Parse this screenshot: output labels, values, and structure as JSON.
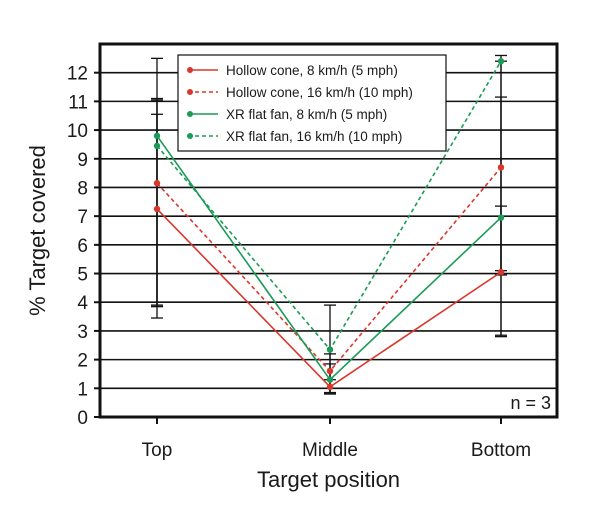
{
  "chart_data": {
    "type": "line",
    "xlabel": "Target position",
    "ylabel": "% Target covered",
    "categories": [
      "Top",
      "Middle",
      "Bottom"
    ],
    "ylim": [
      0,
      13
    ],
    "yticks": [
      0,
      1,
      2,
      3,
      4,
      5,
      6,
      7,
      8,
      9,
      10,
      11,
      12
    ],
    "grid": "horizontal",
    "legend_position": "top-center",
    "annotation": "n = 3",
    "series": [
      {
        "name": "Hollow cone, 8 km/h (5 mph)",
        "color": "#d9372b",
        "line_style": "solid",
        "values": [
          7.25,
          1.05,
          5.05
        ],
        "error_low": [
          3.45,
          0.8,
          2.85
        ],
        "error_high": [
          11.05,
          1.3,
          7.35
        ]
      },
      {
        "name": "Hollow cone, 16 km/h (10 mph)",
        "color": "#d9372b",
        "line_style": "dashed",
        "values": [
          8.15,
          1.6,
          8.7
        ],
        "error_low": [
          3.85,
          0.85,
          5.1
        ],
        "error_high": [
          10.55,
          2.2,
          12.4
        ]
      },
      {
        "name": "XR flat fan, 8 km/h (5 mph)",
        "color": "#1a9b57",
        "line_style": "solid",
        "values": [
          9.8,
          1.3,
          6.95
        ],
        "error_low": [
          3.85,
          0.85,
          2.8
        ],
        "error_high": [
          11.1,
          1.85,
          11.15
        ]
      },
      {
        "name": "XR flat fan, 16 km/h (10 mph)",
        "color": "#1a9b57",
        "line_style": "dashed",
        "values": [
          9.45,
          2.35,
          12.4
        ],
        "error_low": [
          3.9,
          0.85,
          4.95
        ],
        "error_high": [
          12.5,
          3.9,
          12.6
        ]
      }
    ]
  }
}
